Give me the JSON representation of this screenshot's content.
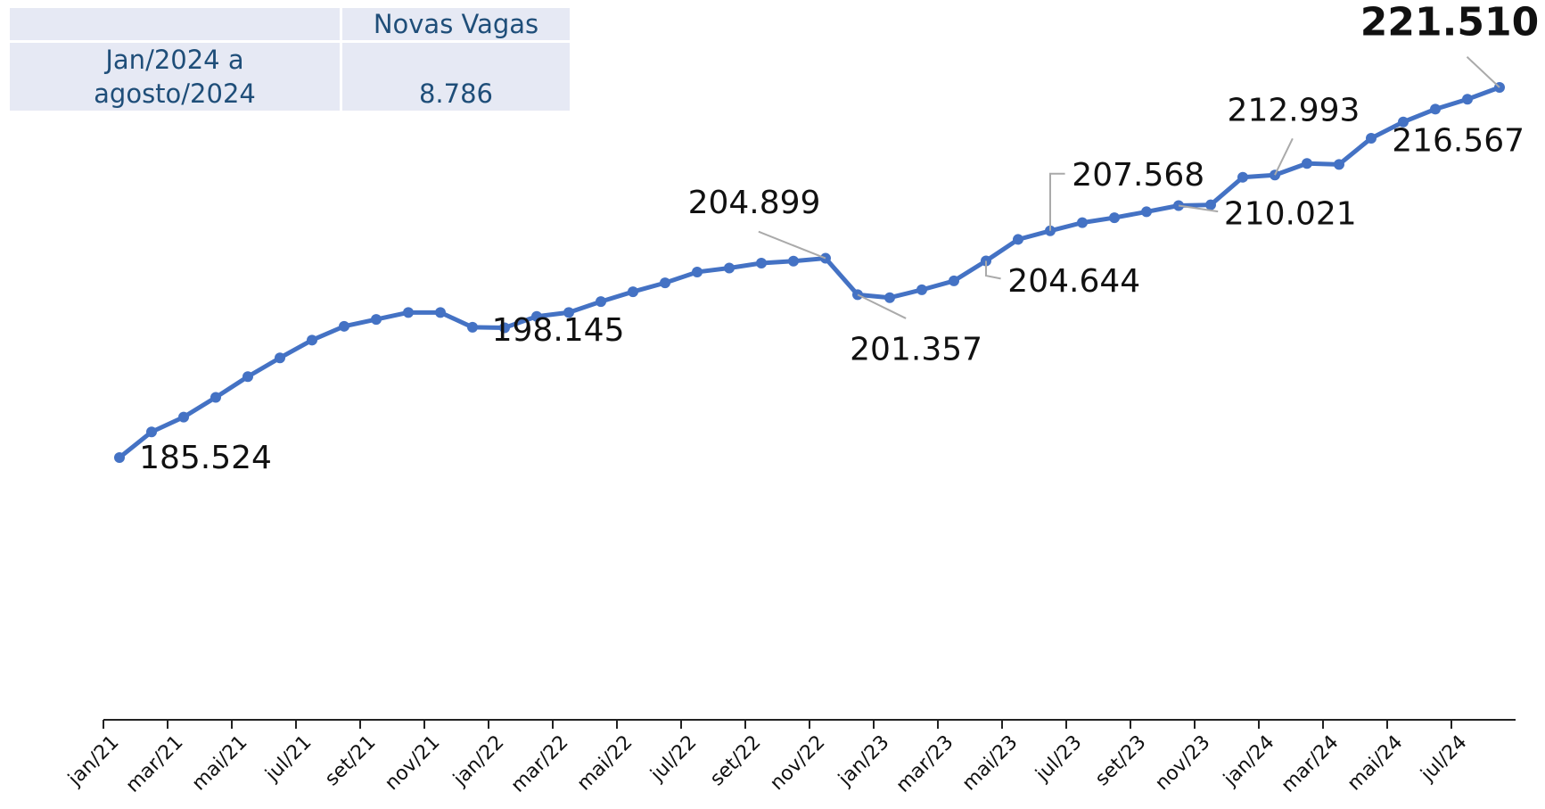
{
  "table": {
    "column_header": "Novas Vagas",
    "row_label": "Jan/2024 a agosto/2024",
    "value": "8.786"
  },
  "chart_data": {
    "type": "line",
    "color": "#4472c4",
    "categories": [
      "jan/21",
      null,
      "mar/21",
      null,
      "mai/21",
      null,
      "jul/21",
      null,
      "set/21",
      null,
      "nov/21",
      null,
      "jan/22",
      null,
      "mar/22",
      null,
      "mai/22",
      null,
      "jul/22",
      null,
      "set/22",
      null,
      "nov/22",
      null,
      "jan/23",
      null,
      "mar/23",
      null,
      "mai/23",
      null,
      "jul/23",
      null,
      "set/23",
      null,
      "nov/23",
      null,
      "jan/24",
      null,
      "mar/24",
      null,
      "mai/24",
      null,
      "jul/24",
      null
    ],
    "values": [
      185524,
      188019,
      189458,
      191378,
      193393,
      195216,
      196943,
      198287,
      198958,
      199630,
      199630,
      198191,
      198145,
      199246,
      199630,
      200686,
      201646,
      202509,
      203565,
      203949,
      204429,
      204620,
      204899,
      201357,
      201070,
      201838,
      202701,
      204644,
      206731,
      207568,
      208363,
      208843,
      209419,
      210021,
      210091,
      212777,
      212993,
      214120,
      214024,
      216567,
      218150,
      219398,
      220357,
      221510
    ],
    "value_labels": [
      "185.524",
      null,
      null,
      null,
      null,
      null,
      null,
      null,
      null,
      null,
      null,
      null,
      "198.145",
      null,
      null,
      null,
      null,
      null,
      null,
      null,
      null,
      null,
      "204.899",
      "201.357",
      null,
      null,
      null,
      "204.644",
      null,
      "207.568",
      null,
      null,
      null,
      "210.021",
      null,
      null,
      "212.993",
      null,
      null,
      "216.567",
      null,
      null,
      null,
      "221.510"
    ]
  }
}
